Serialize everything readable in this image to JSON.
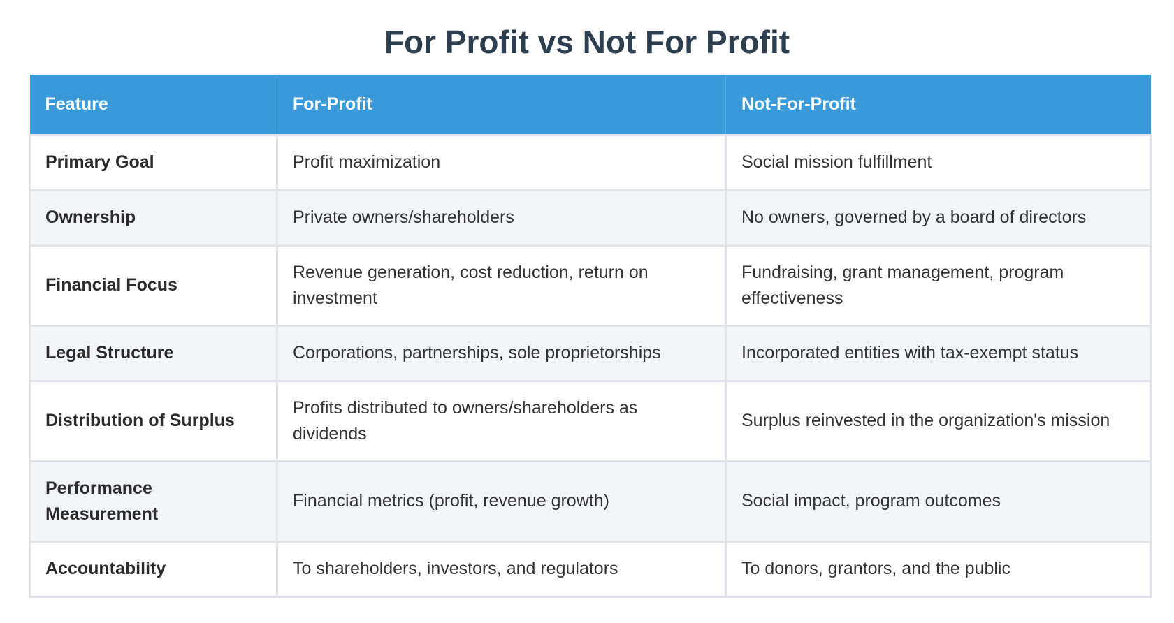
{
  "title": "For Profit vs Not For Profit",
  "table": {
    "headers": [
      "Feature",
      "For-Profit",
      "Not-For-Profit"
    ],
    "rows": [
      {
        "feature": "Primary Goal",
        "for_profit": "Profit maximization",
        "not_for_profit": "Social mission fulfillment"
      },
      {
        "feature": "Ownership",
        "for_profit": "Private owners/shareholders",
        "not_for_profit": "No owners, governed by a board of directors"
      },
      {
        "feature": "Financial Focus",
        "for_profit": "Revenue generation, cost reduction, return on investment",
        "not_for_profit": "Fundraising, grant management, program effectiveness"
      },
      {
        "feature": "Legal Structure",
        "for_profit": "Corporations, partnerships, sole proprietorships",
        "not_for_profit": "Incorporated entities with tax-exempt status"
      },
      {
        "feature": "Distribution of Surplus",
        "for_profit": "Profits distributed to owners/shareholders as dividends",
        "not_for_profit": "Surplus reinvested in the organization's mission"
      },
      {
        "feature": "Performance Measurement",
        "for_profit": "Financial metrics (profit, revenue growth)",
        "not_for_profit": "Social impact, program outcomes"
      },
      {
        "feature": "Accountability",
        "for_profit": "To shareholders, investors, and regulators",
        "not_for_profit": "To donors, grantors, and the public"
      }
    ]
  },
  "colors": {
    "title": "#2c3e50",
    "header_bg": "#3a9ad9",
    "header_text": "#ffffff",
    "row_alt_bg": "#f1f4f9",
    "border": "#e1e4e8"
  }
}
